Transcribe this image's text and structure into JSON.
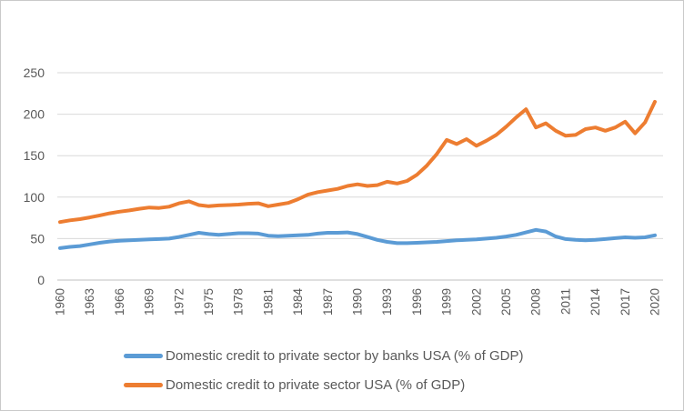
{
  "window": {
    "background_color": "#ffffff",
    "border_color": "#c9c9c9"
  },
  "chart_data": {
    "type": "line",
    "title": "",
    "xlabel": "",
    "ylabel": "",
    "x": [
      1960,
      1961,
      1962,
      1963,
      1964,
      1965,
      1966,
      1967,
      1968,
      1969,
      1970,
      1971,
      1972,
      1973,
      1974,
      1975,
      1976,
      1977,
      1978,
      1979,
      1980,
      1981,
      1982,
      1983,
      1984,
      1985,
      1986,
      1987,
      1988,
      1989,
      1990,
      1991,
      1992,
      1993,
      1994,
      1995,
      1996,
      1997,
      1998,
      1999,
      2000,
      2001,
      2002,
      2003,
      2004,
      2005,
      2006,
      2007,
      2008,
      2009,
      2010,
      2011,
      2012,
      2013,
      2014,
      2015,
      2016,
      2017,
      2018,
      2019,
      2020
    ],
    "series": [
      {
        "name": "Domestic credit to private sector by banks USA (% of GDP)",
        "color": "#5B9BD5",
        "values": [
          38.5,
          40,
          41,
          43,
          45,
          46.5,
          47.5,
          48,
          48.5,
          49,
          49.5,
          50,
          52,
          54.5,
          57,
          55.5,
          54.5,
          55.5,
          56.5,
          56.5,
          56,
          53.5,
          53,
          53.5,
          54,
          54.5,
          56,
          57,
          57,
          57.5,
          55.5,
          52,
          48.5,
          46,
          44.5,
          44.5,
          45,
          45.5,
          46,
          47,
          48,
          48.5,
          49,
          50,
          51,
          52.5,
          54.5,
          57.5,
          60.5,
          58.5,
          52.5,
          49.5,
          48.5,
          48,
          48.5,
          49.5,
          50.5,
          51.5,
          51,
          51.5,
          54
        ]
      },
      {
        "name": "Domestic credit to private sector USA (% of GDP)",
        "color": "#ED7D31",
        "values": [
          70,
          72,
          73.5,
          75.5,
          78,
          80.5,
          82.5,
          84,
          86,
          87.5,
          87,
          88.5,
          92.5,
          95,
          90.5,
          89,
          90,
          90.5,
          91,
          92,
          92.5,
          89,
          91,
          93,
          97.5,
          103,
          106,
          108,
          110,
          113.5,
          115.5,
          113.5,
          114.5,
          118.5,
          116.5,
          119.5,
          127,
          138,
          152,
          169,
          164,
          170,
          162,
          168,
          175,
          185,
          196,
          206,
          184,
          189,
          180,
          174,
          175,
          182,
          184,
          180,
          184,
          191,
          177,
          190,
          215
        ]
      }
    ],
    "ylim": [
      0,
      250
    ],
    "y_ticks": [
      "0",
      "50",
      "100",
      "150",
      "200",
      "250"
    ],
    "x_tick_years": [
      "1960",
      "1963",
      "1966",
      "1969",
      "1972",
      "1975",
      "1978",
      "1981",
      "1984",
      "1987",
      "1990",
      "1993",
      "1996",
      "1999",
      "2002",
      "2005",
      "2008",
      "2011",
      "2014",
      "2017",
      "2020"
    ],
    "grid": true,
    "legend_position": "bottom",
    "axis_text_color": "#595959",
    "gridline_color": "#D9D9D9",
    "axis_line_color": "#BFBFBF"
  }
}
